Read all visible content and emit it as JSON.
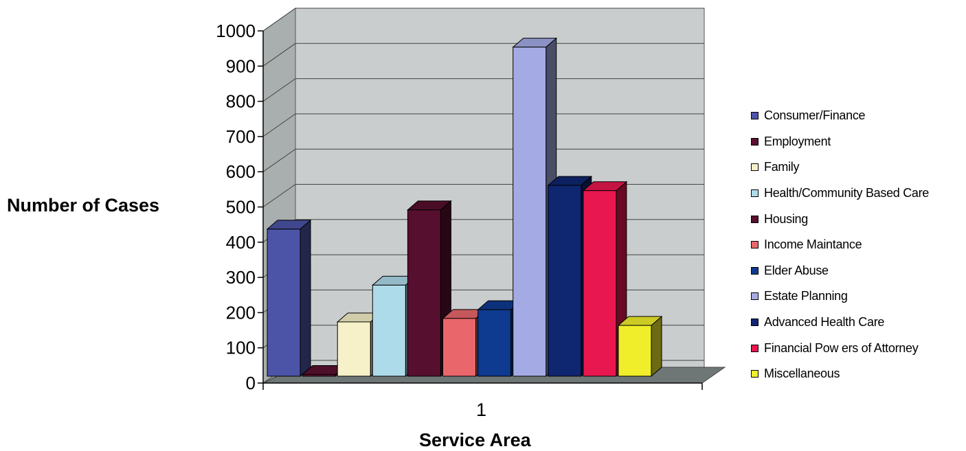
{
  "chart_data": {
    "type": "bar",
    "xlabel": "Service Area",
    "ylabel": "Number of Cases",
    "categories": [
      "1"
    ],
    "ylim": [
      0,
      1000
    ],
    "yticks": [
      0,
      100,
      200,
      300,
      400,
      500,
      600,
      700,
      800,
      900,
      1000
    ],
    "grid": true,
    "legend": "right",
    "series": [
      {
        "name": "Consumer/Finance",
        "values": [
          420
        ],
        "color": "#4b54a6"
      },
      {
        "name": "Employment",
        "values": [
          5
        ],
        "color": "#5a1030"
      },
      {
        "name": "Family",
        "values": [
          155
        ],
        "color": "#f6f1c8"
      },
      {
        "name": "Health/Community Based Care",
        "values": [
          260
        ],
        "color": "#aedbea"
      },
      {
        "name": "Housing",
        "values": [
          475
        ],
        "color": "#560f2e"
      },
      {
        "name": "Income Maintance",
        "values": [
          165
        ],
        "color": "#e9666b"
      },
      {
        "name": "Elder Abuse",
        "values": [
          190
        ],
        "color": "#0e3a8f"
      },
      {
        "name": "Estate Planning",
        "values": [
          940
        ],
        "color": "#a4abe4"
      },
      {
        "name": "Advanced Health Care",
        "values": [
          545
        ],
        "color": "#0f2670"
      },
      {
        "name": "Financial Pow ers of Attorney",
        "values": [
          530
        ],
        "color": "#e8174f"
      },
      {
        "name": "Miscellaneous",
        "values": [
          145
        ],
        "color": "#f0ee2a"
      }
    ]
  }
}
